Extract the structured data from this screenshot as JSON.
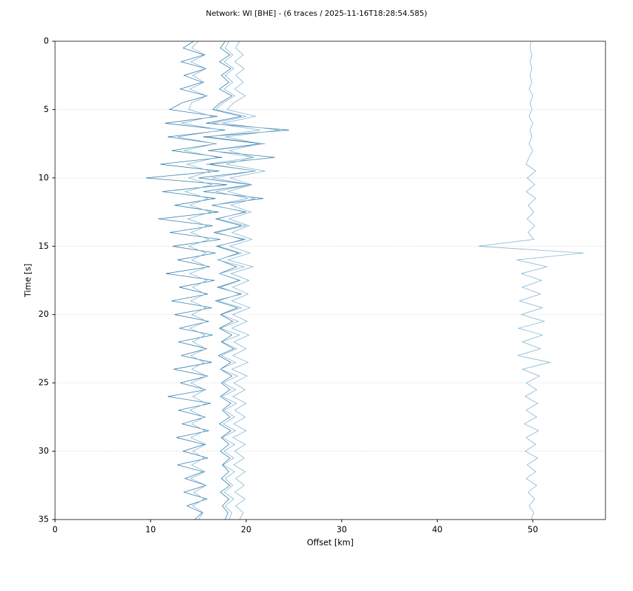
{
  "chart_data": {
    "type": "line",
    "title": "Network: WI [BHE] - (6 traces / 2025-11-16T18:28:54.585)",
    "xlabel": "Offset [km]",
    "ylabel": "Time [s]",
    "xlim": [
      0,
      57.6
    ],
    "xticks": [
      0,
      10,
      20,
      30,
      40,
      50
    ],
    "ylim": [
      0,
      35
    ],
    "yticks": [
      0,
      5,
      10,
      15,
      20,
      25,
      30,
      35
    ],
    "yinvert": true,
    "grid": true,
    "y": [
      0,
      0.5,
      1,
      1.5,
      2,
      2.5,
      3,
      3.5,
      4,
      4.5,
      5,
      5.5,
      6,
      6.5,
      7,
      7.5,
      8,
      8.5,
      9,
      9.5,
      10,
      10.5,
      11,
      11.5,
      12,
      12.5,
      13,
      13.5,
      14,
      14.5,
      15,
      15.5,
      16,
      16.5,
      17,
      17.5,
      18,
      18.5,
      19,
      19.5,
      20,
      20.5,
      21,
      21.5,
      22,
      22.5,
      23,
      23.5,
      24,
      24.5,
      25,
      25.5,
      26,
      26.5,
      27,
      27.5,
      28,
      28.5,
      29,
      29.5,
      30,
      30.5,
      31,
      31.5,
      32,
      32.5,
      33,
      33.5,
      34,
      34.5,
      35
    ],
    "series": [
      {
        "color": "#2a78ab",
        "values": [
          14.5,
          13.4,
          15.6,
          13.2,
          15.8,
          13.5,
          15.4,
          13.1,
          15.9,
          13.3,
          12.0,
          17.0,
          11.5,
          17.8,
          11.8,
          16.9,
          12.2,
          17.5,
          11.0,
          17.2,
          9.5,
          18.0,
          11.2,
          16.8,
          12.5,
          17.1,
          10.8,
          16.5,
          12.0,
          17.3,
          12.3,
          16.8,
          12.8,
          16.2,
          11.6,
          16.7,
          13.0,
          16.0,
          12.2,
          16.4,
          12.5,
          16.1,
          13.0,
          16.5,
          12.9,
          15.9,
          13.2,
          16.4,
          12.4,
          16.0,
          13.1,
          15.8,
          11.8,
          16.3,
          12.9,
          15.7,
          13.3,
          16.1,
          12.7,
          15.6,
          13.4,
          16.0,
          12.8,
          15.5,
          13.6,
          15.8,
          13.5,
          15.9,
          13.8,
          15.4,
          14.6
        ]
      },
      {
        "color": "#7fb0cf",
        "values": [
          15.0,
          14.3,
          15.7,
          14.2,
          15.8,
          14.4,
          15.6,
          14.1,
          15.9,
          14.3,
          14.0,
          16.5,
          13.2,
          17.5,
          12.8,
          16.8,
          13.5,
          17.0,
          13.8,
          16.2,
          14.0,
          16.4,
          13.6,
          16.0,
          14.1,
          16.3,
          13.9,
          15.9,
          14.2,
          16.1,
          14.0,
          15.8,
          14.3,
          16.0,
          14.1,
          15.9,
          14.4,
          15.7,
          14.2,
          15.8,
          14.3,
          15.9,
          14.1,
          15.7,
          14.4,
          15.8,
          14.2,
          15.6,
          14.3,
          15.9,
          14.2,
          15.7,
          14.4,
          15.8,
          14.1,
          15.6,
          14.3,
          15.7,
          14.2,
          15.8,
          14.4,
          15.6,
          14.3,
          15.7,
          14.2,
          15.8,
          14.5,
          15.6,
          14.4,
          15.5,
          15.0
        ]
      },
      {
        "color": "#2a78ab",
        "values": [
          17.8,
          17.3,
          18.3,
          17.2,
          18.4,
          17.4,
          18.2,
          17.2,
          18.5,
          17.3,
          16.5,
          19.5,
          15.8,
          24.5,
          15.5,
          21.5,
          16.0,
          23.0,
          16.2,
          21.0,
          15.0,
          20.5,
          15.5,
          21.8,
          16.4,
          20.0,
          16.8,
          19.5,
          16.6,
          19.9,
          16.9,
          19.2,
          17.1,
          19.0,
          17.2,
          19.3,
          17.0,
          19.5,
          16.8,
          19.1,
          17.3,
          18.6,
          17.2,
          18.5,
          17.4,
          18.7,
          17.1,
          18.4,
          17.3,
          18.5,
          17.4,
          18.3,
          17.3,
          18.4,
          17.5,
          18.3,
          17.2,
          18.4,
          17.4,
          18.2,
          17.3,
          18.3,
          17.5,
          18.2,
          17.4,
          18.3,
          17.3,
          18.2,
          17.5,
          18.1,
          17.8
        ]
      },
      {
        "color": "#7fb0cf",
        "values": [
          18.2,
          17.8,
          18.6,
          17.7,
          18.7,
          17.8,
          18.6,
          17.7,
          18.8,
          17.6,
          16.8,
          20.0,
          16.5,
          21.5,
          16.0,
          22.0,
          16.3,
          20.8,
          15.8,
          21.0,
          16.4,
          20.5,
          16.8,
          20.2,
          16.6,
          19.8,
          17.0,
          20.0,
          16.9,
          19.6,
          17.1,
          19.5,
          17.0,
          19.8,
          17.2,
          19.4,
          17.3,
          19.3,
          17.1,
          19.5,
          17.4,
          19.2,
          17.3,
          19.3,
          17.5,
          19.0,
          17.4,
          18.9,
          17.3,
          19.1,
          17.6,
          18.9,
          17.5,
          19.0,
          17.7,
          18.8,
          17.6,
          18.9,
          17.5,
          18.8,
          17.7,
          18.7,
          17.6,
          18.8,
          17.8,
          18.6,
          17.7,
          18.7,
          17.8,
          18.5,
          18.2
        ]
      },
      {
        "color": "#7fb0cf",
        "values": [
          19.3,
          18.9,
          19.7,
          18.8,
          19.8,
          18.9,
          19.7,
          18.8,
          19.9,
          18.7,
          18.0,
          21.0,
          17.5,
          23.5,
          17.8,
          21.5,
          18.2,
          20.8,
          17.9,
          22.0,
          18.3,
          20.6,
          18.1,
          20.9,
          18.4,
          20.5,
          18.2,
          20.3,
          18.5,
          20.6,
          18.3,
          20.4,
          18.1,
          20.7,
          18.4,
          20.3,
          18.6,
          20.2,
          18.5,
          20.4,
          18.6,
          20.1,
          18.5,
          20.3,
          18.7,
          20.0,
          18.6,
          20.2,
          18.5,
          20.1,
          18.7,
          19.9,
          18.6,
          20.0,
          18.8,
          19.9,
          18.7,
          20.0,
          18.6,
          19.9,
          18.8,
          19.8,
          18.7,
          19.9,
          18.9,
          19.8,
          18.8,
          19.9,
          18.9,
          19.7,
          19.3
        ]
      },
      {
        "color": "#7fb0cf",
        "values": [
          49.8,
          49.7,
          49.9,
          49.7,
          49.9,
          49.7,
          49.9,
          49.6,
          50.0,
          49.7,
          49.9,
          49.6,
          50.0,
          49.7,
          49.9,
          49.6,
          50.0,
          49.6,
          49.3,
          50.3,
          49.4,
          50.2,
          49.3,
          50.3,
          49.5,
          50.1,
          49.4,
          50.2,
          49.5,
          50.1,
          44.3,
          55.3,
          48.3,
          51.5,
          48.8,
          50.9,
          48.9,
          50.8,
          48.6,
          51.0,
          48.8,
          51.2,
          48.5,
          51.0,
          48.9,
          50.8,
          48.4,
          51.8,
          48.9,
          50.7,
          49.3,
          50.4,
          49.2,
          50.5,
          49.3,
          50.4,
          49.1,
          50.6,
          49.3,
          50.3,
          49.2,
          50.5,
          49.4,
          50.3,
          49.3,
          50.4,
          49.5,
          50.2,
          49.6,
          50.1,
          49.8
        ]
      }
    ]
  }
}
